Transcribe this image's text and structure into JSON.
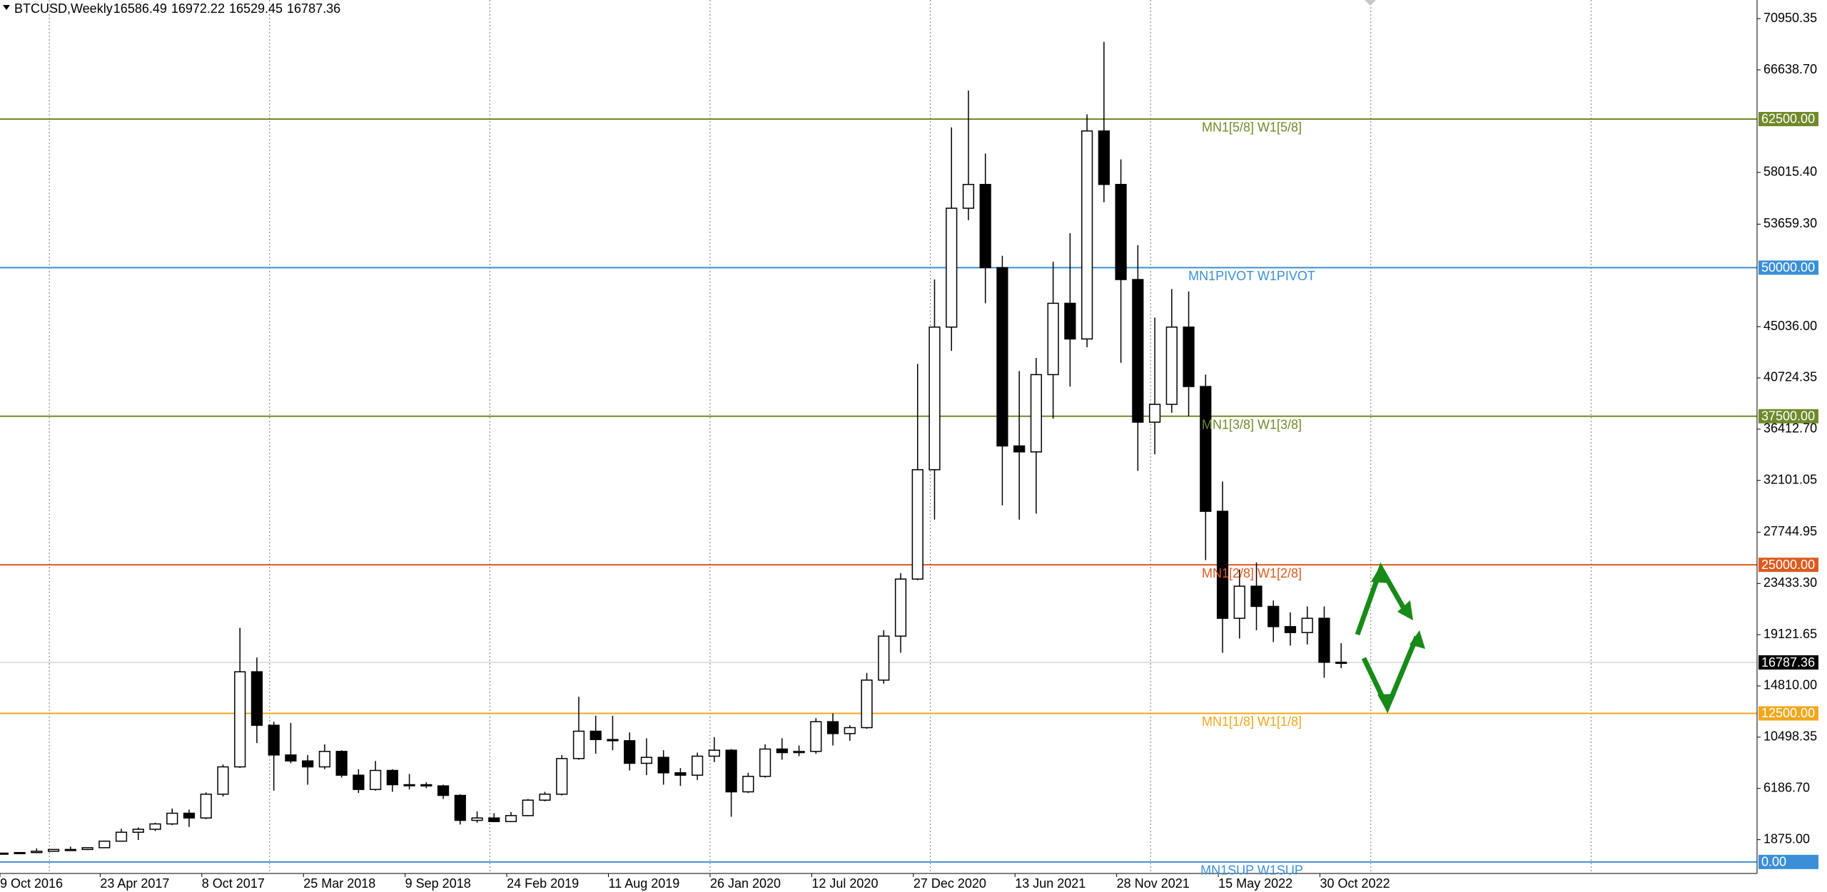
{
  "chart_data": {
    "type": "candlestick",
    "header": {
      "symbol": "BTCUSD,Weekly",
      "ohlc": [
        16586.49,
        16972.22,
        16529.45,
        16787.36
      ]
    },
    "x": [
      5,
      9,
      13,
      17,
      21,
      25,
      29,
      33,
      37,
      41,
      45,
      49,
      53,
      57,
      61,
      65,
      69,
      73,
      77,
      81,
      85,
      89,
      93,
      97,
      101,
      105,
      109,
      113,
      117,
      121,
      125,
      129,
      133,
      137,
      141,
      145,
      149,
      153,
      157,
      161,
      165,
      169,
      173,
      177,
      181,
      185,
      189,
      193,
      197,
      201,
      205,
      209,
      213,
      217,
      221,
      225,
      229,
      233,
      237,
      241,
      245,
      249,
      253,
      257,
      261,
      265,
      269,
      273,
      277,
      281,
      285,
      289,
      293,
      297,
      301,
      305,
      309,
      313,
      317,
      321
    ],
    "open": [
      700,
      740,
      790,
      900,
      1050,
      1050,
      1200,
      1750,
      2500,
      2750,
      3200,
      4100,
      3700,
      5700,
      8000,
      16000,
      11500,
      9000,
      8500,
      8000,
      9300,
      7300,
      6100,
      7700,
      6500,
      6500,
      6400,
      5600,
      3500,
      3700,
      3400,
      3900,
      5200,
      5700,
      8700,
      11000,
      10300,
      10200,
      8300,
      8800,
      7500,
      7300,
      8900,
      9400,
      5900,
      7200,
      9500,
      9200,
      9300,
      11800,
      10800,
      11300,
      15300,
      19000,
      23800,
      33000,
      45000,
      55000,
      57000,
      50000,
      35000,
      34500,
      41000,
      47000,
      44000,
      61500,
      57000,
      49000,
      37000,
      38500,
      45000,
      40000,
      29500,
      20500,
      23200,
      21500,
      19800,
      19300,
      20500,
      16800
    ],
    "high": [
      760,
      800,
      1140,
      1060,
      1290,
      1220,
      1800,
      2800,
      2900,
      3300,
      4500,
      4400,
      5850,
      8200,
      19700,
      17200,
      11800,
      11700,
      9000,
      9900,
      9400,
      7800,
      8500,
      7800,
      7400,
      6700,
      6500,
      5700,
      4250,
      4100,
      4200,
      5300,
      5900,
      9000,
      13900,
      12300,
      12300,
      10900,
      10400,
      9400,
      7900,
      9200,
      10500,
      9500,
      7500,
      9900,
      10400,
      9800,
      12100,
      12500,
      11500,
      15900,
      19500,
      24300,
      41900,
      49000,
      61800,
      64900,
      59600,
      51000,
      41300,
      42400,
      50500,
      52900,
      62900,
      69000,
      59100,
      51900,
      45800,
      48200,
      48000,
      41000,
      32000,
      24600,
      25200,
      22000,
      21000,
      21500,
      21500,
      18400
    ],
    "low": [
      690,
      730,
      760,
      880,
      950,
      1000,
      1180,
      1700,
      1850,
      2600,
      3100,
      2950,
      3600,
      5500,
      7900,
      10000,
      6000,
      8300,
      6500,
      7800,
      7100,
      5800,
      6000,
      5900,
      6100,
      6200,
      5300,
      3150,
      3300,
      3350,
      3350,
      3850,
      5100,
      5600,
      8600,
      9100,
      9400,
      7700,
      7300,
      6500,
      6400,
      6900,
      8400,
      3800,
      5800,
      7100,
      8600,
      8900,
      9100,
      9800,
      10200,
      11200,
      15000,
      17600,
      23700,
      28800,
      43000,
      54000,
      47000,
      30000,
      28800,
      29300,
      37300,
      40000,
      43300,
      55500,
      42000,
      32900,
      34300,
      37800,
      37500,
      25400,
      17600,
      18800,
      19500,
      18500,
      18200,
      18300,
      15500,
      16300
    ],
    "close": [
      740,
      790,
      900,
      1050,
      1050,
      1200,
      1750,
      2500,
      2750,
      3200,
      4100,
      3700,
      5700,
      8000,
      16000,
      11500,
      9000,
      8500,
      8000,
      9300,
      7300,
      6100,
      7700,
      6500,
      6500,
      6400,
      5600,
      3500,
      3700,
      3400,
      3900,
      5200,
      5700,
      8700,
      11000,
      10300,
      10200,
      8300,
      8800,
      7500,
      7300,
      8900,
      9400,
      5900,
      7200,
      9500,
      9200,
      9300,
      11800,
      10800,
      11300,
      15300,
      19000,
      23800,
      33000,
      45000,
      55000,
      57000,
      50000,
      35000,
      34500,
      41000,
      47000,
      44000,
      61500,
      57000,
      49000,
      37000,
      38500,
      45000,
      40000,
      29500,
      20500,
      23200,
      21500,
      19800,
      19300,
      20500,
      16800,
      16787.36
    ],
    "xlim": [
      4.35,
      419.2
    ],
    "ylim": [
      -968,
      72518
    ],
    "xticks": [
      {
        "value": 0,
        "label": "9 Oct 2016"
      },
      {
        "value": 28,
        "label": "23 Apr 2017"
      },
      {
        "value": 52,
        "label": "8 Oct 2017"
      },
      {
        "value": 76,
        "label": "25 Mar 2018"
      },
      {
        "value": 100,
        "label": "9 Sep 2018"
      },
      {
        "value": 124,
        "label": "24 Feb 2019"
      },
      {
        "value": 148,
        "label": "11 Aug 2019"
      },
      {
        "value": 172,
        "label": "26 Jan 2020"
      },
      {
        "value": 196,
        "label": "12 Jul 2020"
      },
      {
        "value": 220,
        "label": "27 Dec 2020"
      },
      {
        "value": 244,
        "label": "13 Jun 2021"
      },
      {
        "value": 268,
        "label": "28 Nov 2021"
      },
      {
        "value": 292,
        "label": "15 May 2022"
      },
      {
        "value": 316,
        "label": "30 Oct 2022"
      }
    ],
    "yticks": [
      {
        "value": 70950.35,
        "label": "70950.35"
      },
      {
        "value": 66638.7,
        "label": "66638.70"
      },
      {
        "value": 58015.4,
        "label": "58015.40"
      },
      {
        "value": 53659.3,
        "label": "53659.30"
      },
      {
        "value": 45036,
        "label": "45036.00"
      },
      {
        "value": 40724.35,
        "label": "40724.35"
      },
      {
        "value": 36412.7,
        "label": "36412.70"
      },
      {
        "value": 32101.05,
        "label": "32101.05"
      },
      {
        "value": 27744.95,
        "label": "27744.95"
      },
      {
        "value": 23433.3,
        "label": "23433.30"
      },
      {
        "value": 19121.65,
        "label": "19121.65"
      },
      {
        "value": 14810,
        "label": "14810.00"
      },
      {
        "value": 10498.35,
        "label": "10498.35"
      },
      {
        "value": 6186.7,
        "label": "6186.70"
      },
      {
        "value": 1875,
        "label": "1875.00"
      }
    ],
    "levels": [
      {
        "value": 62500,
        "label": "62500.00",
        "name": "MN1[5/8] W1[5/8]",
        "color": "#6f8a2a"
      },
      {
        "value": 50000,
        "label": "50000.00",
        "name": "MN1PIVOT W1PIVOT",
        "color": "#3b8fd6"
      },
      {
        "value": 37500,
        "label": "37500.00",
        "name": "MN1[3/8] W1[3/8]",
        "color": "#6f8a2a"
      },
      {
        "value": 25000,
        "label": "25000.00",
        "name": "MN1[2/8] W1[2/8]",
        "color": "#dd5a1e"
      },
      {
        "value": 12500,
        "label": "12500.00",
        "name": "MN1[1/8] W1[1/8]",
        "color": "#f2a71c"
      },
      {
        "value": 0,
        "label": "0.00",
        "name": "MN1SUP W1SUP",
        "color": "#3b8fd6"
      }
    ],
    "last_price": {
      "value": 16787.36,
      "label": "16787.36"
    }
  }
}
